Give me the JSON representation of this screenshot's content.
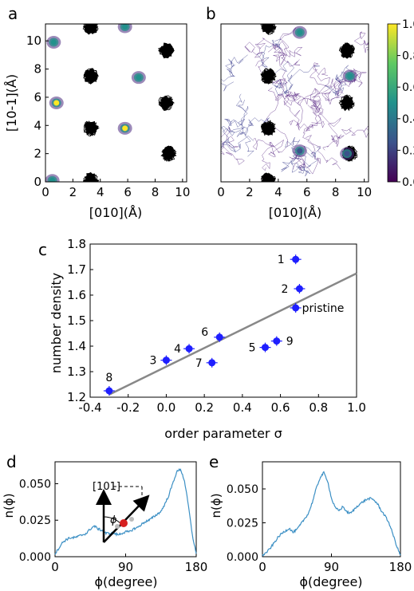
{
  "panel_labels": {
    "a": "a",
    "b": "b",
    "c": "c",
    "d": "d",
    "e": "e"
  },
  "colorbar": {
    "ticks": [
      "1.0",
      "0.8",
      "0.6",
      "0.4",
      "0.2",
      "0.0"
    ],
    "colormap": "viridis",
    "colors": [
      "#440154",
      "#3b528b",
      "#21918c",
      "#5ec962",
      "#fde725"
    ]
  },
  "map_panels": {
    "xlabel": "[010](Å)",
    "ylabel": "[10-1](Å)",
    "xticks": [
      "0",
      "2",
      "4",
      "6",
      "8",
      "10"
    ],
    "yticks": [
      "0",
      "2",
      "4",
      "6",
      "8",
      "10"
    ],
    "black_sites": [
      [
        3.3,
        11.0
      ],
      [
        3.3,
        7.5
      ],
      [
        3.3,
        3.8
      ],
      [
        3.3,
        0.1
      ],
      [
        8.8,
        9.3
      ],
      [
        8.8,
        5.6
      ],
      [
        9.0,
        2.0
      ]
    ],
    "panel_a_sites": [
      [
        0.6,
        9.9,
        0.6
      ],
      [
        0.8,
        5.6,
        0.9
      ],
      [
        5.8,
        3.8,
        0.95
      ],
      [
        6.8,
        7.4,
        0.6
      ],
      [
        5.8,
        11.0,
        0.5
      ],
      [
        0.5,
        0.1,
        0.4
      ]
    ],
    "panel_b_sites": [
      [
        5.5,
        10.6,
        0.5
      ],
      [
        9.0,
        7.5,
        0.45
      ],
      [
        5.5,
        2.2,
        0.35
      ],
      [
        8.8,
        2.0,
        0.3
      ]
    ]
  },
  "chart_data": [
    {
      "type": "scatter",
      "panel": "c",
      "xlabel": "order parameter σ",
      "ylabel": "number density",
      "xlim": [
        -0.4,
        1.0
      ],
      "ylim": [
        1.2,
        1.8
      ],
      "xticks": [
        "-0.4",
        "-0.2",
        "0.0",
        "0.2",
        "0.4",
        "0.6",
        "0.8",
        "1.0"
      ],
      "yticks": [
        "1.2",
        "1.3",
        "1.4",
        "1.5",
        "1.6",
        "1.7",
        "1.8"
      ],
      "points": [
        {
          "label": "1",
          "x": 0.68,
          "y": 1.74
        },
        {
          "label": "2",
          "x": 0.7,
          "y": 1.625
        },
        {
          "label": "pristine",
          "x": 0.68,
          "y": 1.55
        },
        {
          "label": "3",
          "x": 0.0,
          "y": 1.345
        },
        {
          "label": "4",
          "x": 0.12,
          "y": 1.39
        },
        {
          "label": "5",
          "x": 0.52,
          "y": 1.395
        },
        {
          "label": "6",
          "x": 0.28,
          "y": 1.435
        },
        {
          "label": "7",
          "x": 0.24,
          "y": 1.335
        },
        {
          "label": "8",
          "x": -0.3,
          "y": 1.225
        },
        {
          "label": "9",
          "x": 0.58,
          "y": 1.42
        }
      ],
      "fit_line": {
        "x": [
          -0.3,
          1.0
        ],
        "y": [
          1.21,
          1.685
        ]
      },
      "point_color": "#1f1fff",
      "line_color": "#888888"
    },
    {
      "type": "line",
      "panel": "d",
      "xlabel": "ϕ(degree)",
      "ylabel": "n(ϕ)",
      "xlim": [
        0,
        180
      ],
      "ylim": [
        0,
        0.065
      ],
      "xticks": [
        "0",
        "90",
        "180"
      ],
      "yticks": [
        "0.000",
        "0.025",
        "0.050"
      ],
      "x": [
        0,
        5,
        10,
        15,
        20,
        25,
        30,
        35,
        40,
        45,
        50,
        55,
        60,
        65,
        70,
        75,
        80,
        85,
        90,
        95,
        100,
        105,
        110,
        115,
        120,
        125,
        130,
        135,
        140,
        145,
        150,
        155,
        160,
        165,
        170,
        175,
        180
      ],
      "y": [
        0.002,
        0.006,
        0.01,
        0.012,
        0.013,
        0.013,
        0.014,
        0.015,
        0.016,
        0.019,
        0.021,
        0.019,
        0.018,
        0.016,
        0.016,
        0.016,
        0.015,
        0.016,
        0.017,
        0.017,
        0.019,
        0.02,
        0.022,
        0.024,
        0.025,
        0.027,
        0.029,
        0.031,
        0.036,
        0.042,
        0.05,
        0.058,
        0.06,
        0.052,
        0.035,
        0.015,
        0.002
      ],
      "color": "#3b8fc4",
      "inset": {
        "label": "[101]",
        "angle_label": "ϕ"
      }
    },
    {
      "type": "line",
      "panel": "e",
      "xlabel": "ϕ(degree)",
      "ylabel": "n(ϕ)",
      "xlim": [
        0,
        180
      ],
      "ylim": [
        0,
        0.07
      ],
      "xticks": [
        "0",
        "90",
        "180"
      ],
      "yticks": [
        "0.000",
        "0.025",
        "0.050"
      ],
      "x": [
        0,
        5,
        10,
        15,
        20,
        25,
        30,
        35,
        40,
        45,
        50,
        55,
        60,
        65,
        70,
        75,
        80,
        85,
        90,
        95,
        100,
        105,
        110,
        115,
        120,
        125,
        130,
        135,
        140,
        145,
        150,
        155,
        160,
        165,
        170,
        175,
        180
      ],
      "y": [
        0.001,
        0.003,
        0.006,
        0.01,
        0.014,
        0.017,
        0.019,
        0.021,
        0.018,
        0.02,
        0.024,
        0.028,
        0.032,
        0.04,
        0.05,
        0.058,
        0.062,
        0.056,
        0.043,
        0.036,
        0.034,
        0.037,
        0.033,
        0.032,
        0.035,
        0.038,
        0.04,
        0.042,
        0.043,
        0.042,
        0.039,
        0.034,
        0.03,
        0.025,
        0.017,
        0.008,
        0.001
      ],
      "color": "#3b8fc4"
    }
  ]
}
